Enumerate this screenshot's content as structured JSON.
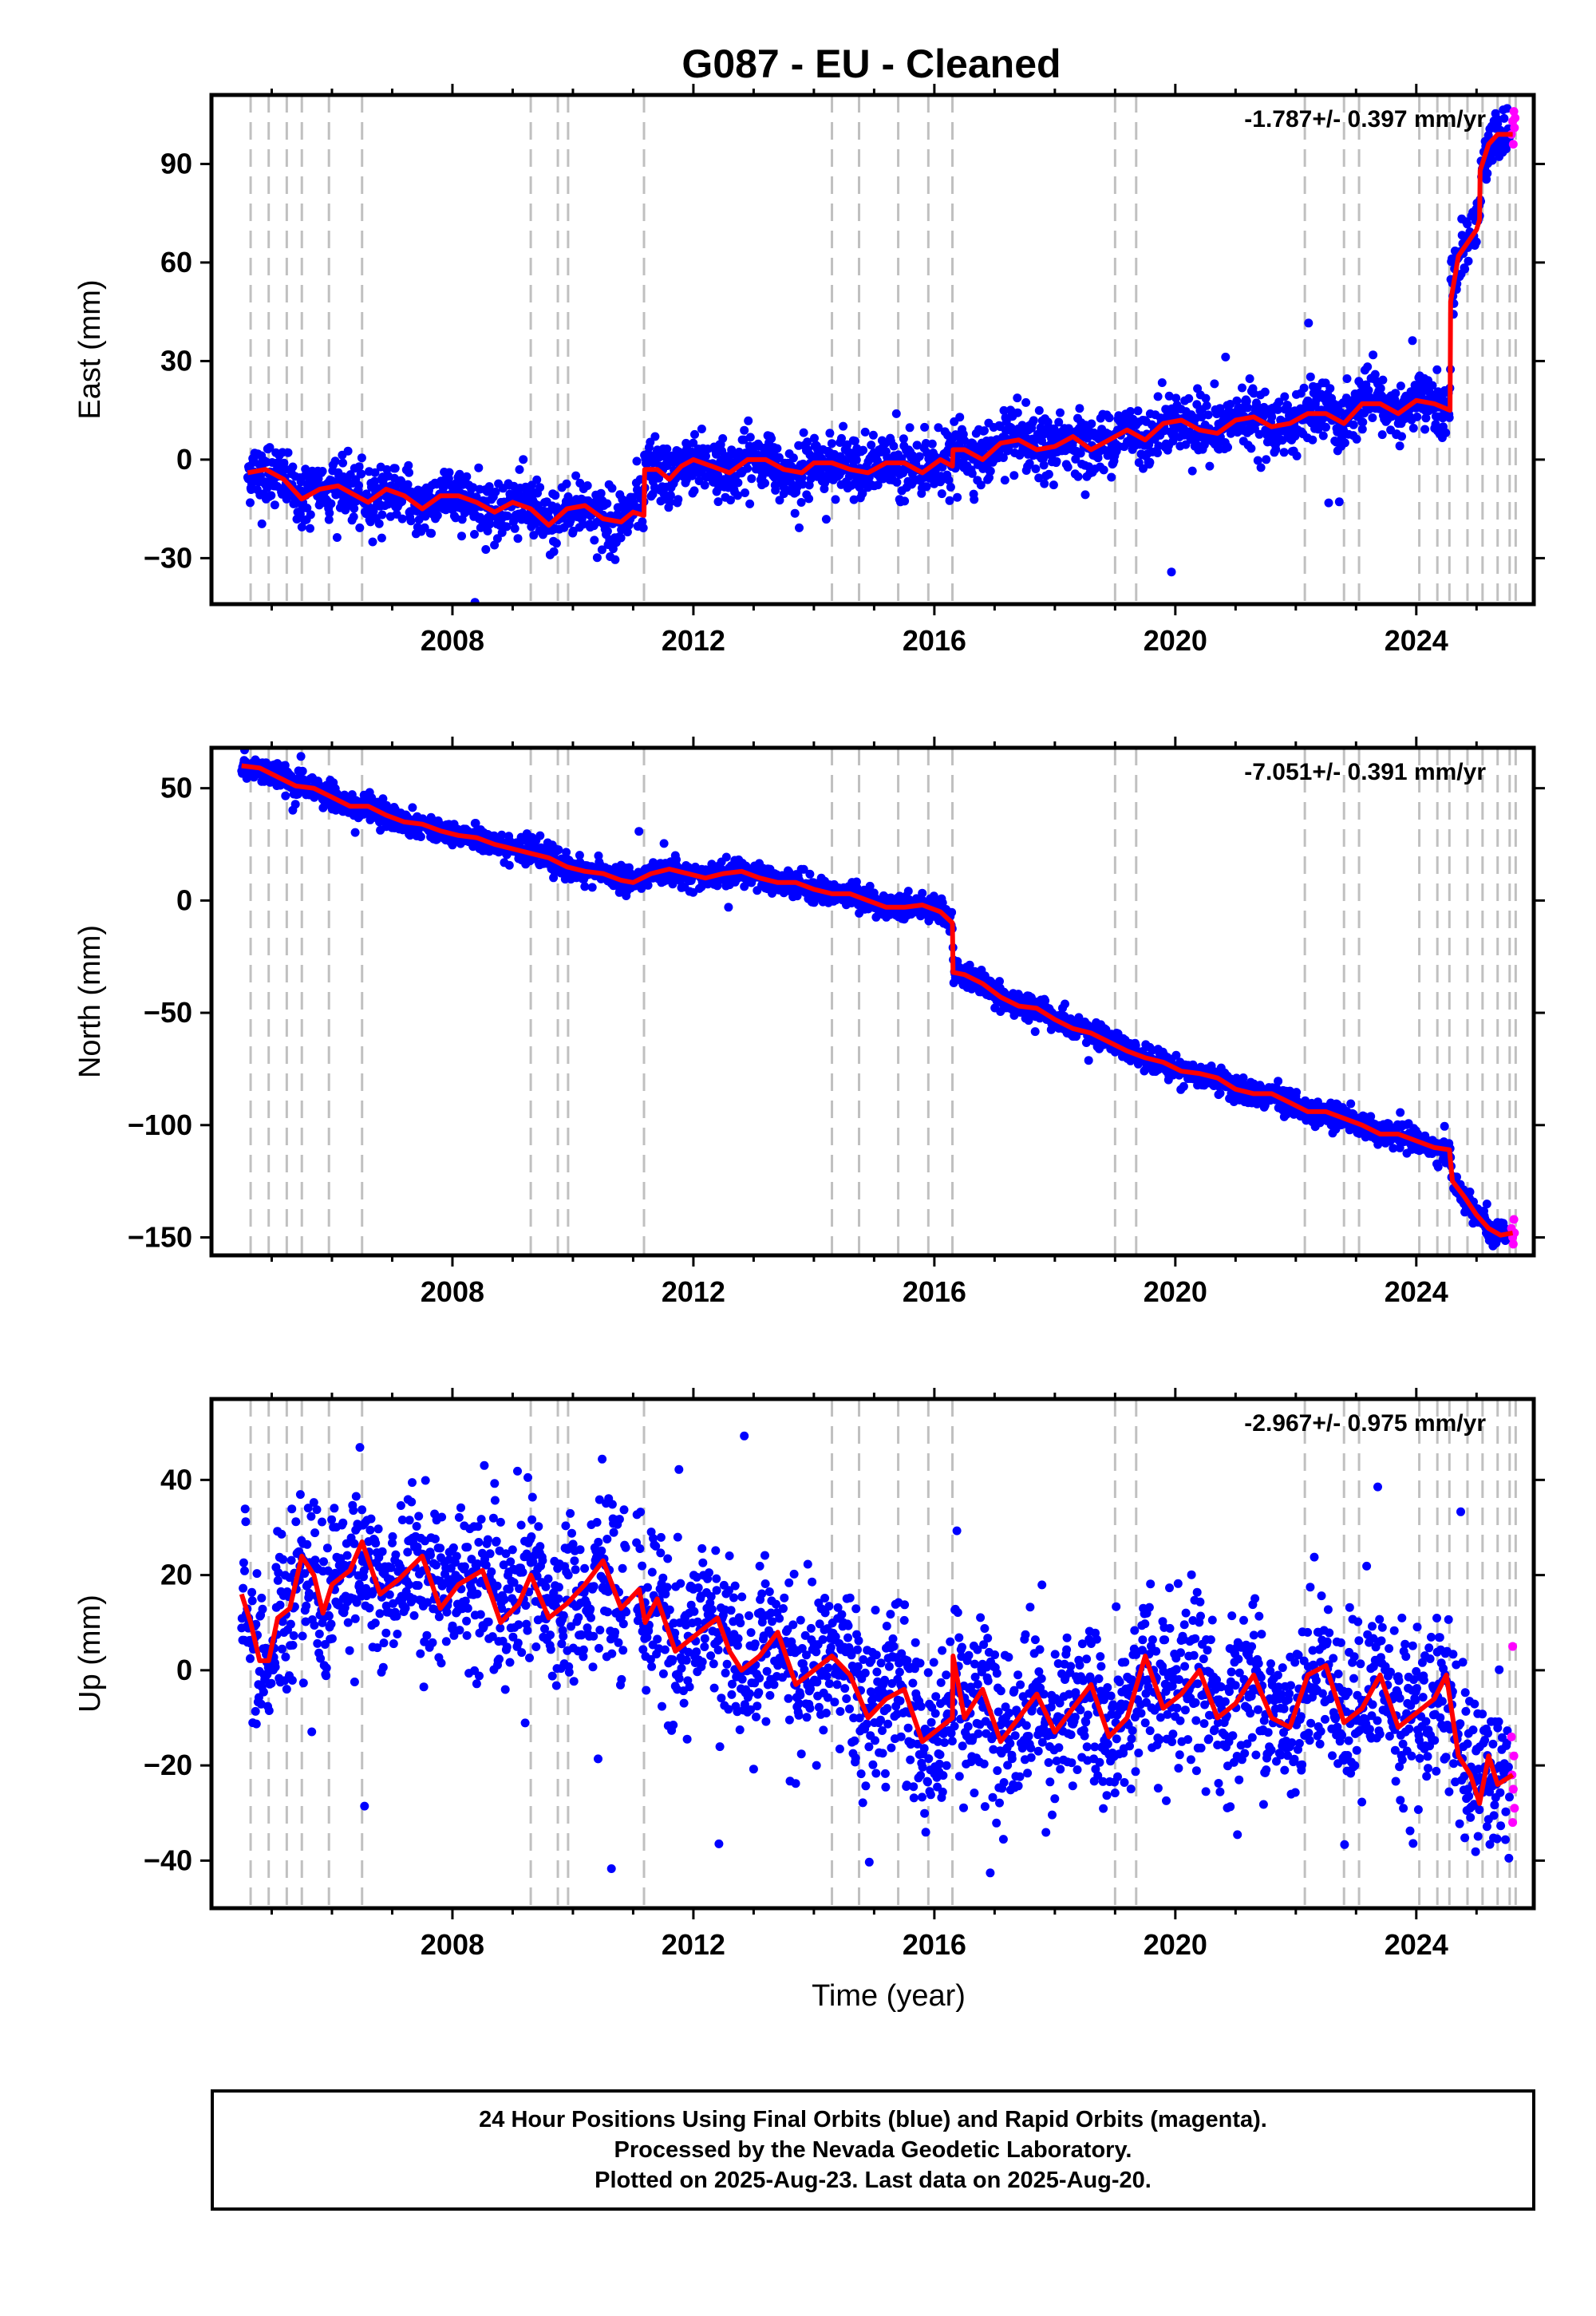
{
  "title": "G087  - EU - Cleaned",
  "chart_data": [
    {
      "type": "scatter",
      "name": "East",
      "ylabel": "East (mm)",
      "xlabel": "",
      "rate_text": "-1.787+/- 0.397 mm/yr",
      "xlim": [
        2004.0,
        2025.95
      ],
      "ylim": [
        -44,
        111
      ],
      "yticks": [
        -30,
        0,
        30,
        60,
        90
      ],
      "xticks": [
        2008,
        2012,
        2016,
        2020,
        2024
      ],
      "model": [
        [
          2004.6,
          -4
        ],
        [
          2004.9,
          -3
        ],
        [
          2005.2,
          -6
        ],
        [
          2005.5,
          -12
        ],
        [
          2005.8,
          -9
        ],
        [
          2006.1,
          -8
        ],
        [
          2006.4,
          -11
        ],
        [
          2006.6,
          -13
        ],
        [
          2006.9,
          -9
        ],
        [
          2007.2,
          -11
        ],
        [
          2007.5,
          -15
        ],
        [
          2007.8,
          -11
        ],
        [
          2008.1,
          -11
        ],
        [
          2008.4,
          -13
        ],
        [
          2008.7,
          -16
        ],
        [
          2009.0,
          -13
        ],
        [
          2009.3,
          -15
        ],
        [
          2009.6,
          -20
        ],
        [
          2009.9,
          -15
        ],
        [
          2010.2,
          -14
        ],
        [
          2010.5,
          -18
        ],
        [
          2010.8,
          -19
        ],
        [
          2011.0,
          -16
        ],
        [
          2011.18,
          -17
        ],
        [
          2011.19,
          -3
        ],
        [
          2011.4,
          -3
        ],
        [
          2011.6,
          -6
        ],
        [
          2011.8,
          -2
        ],
        [
          2012.0,
          0
        ],
        [
          2012.3,
          -2
        ],
        [
          2012.6,
          -4
        ],
        [
          2012.9,
          0
        ],
        [
          2013.2,
          0
        ],
        [
          2013.5,
          -3
        ],
        [
          2013.8,
          -4
        ],
        [
          2014.0,
          -1
        ],
        [
          2014.3,
          -1
        ],
        [
          2014.6,
          -3
        ],
        [
          2014.9,
          -4
        ],
        [
          2015.2,
          -1
        ],
        [
          2015.5,
          -1
        ],
        [
          2015.8,
          -4
        ],
        [
          2016.1,
          0
        ],
        [
          2016.3,
          -2
        ],
        [
          2016.31,
          3
        ],
        [
          2016.5,
          3
        ],
        [
          2016.8,
          0
        ],
        [
          2017.1,
          5
        ],
        [
          2017.4,
          6
        ],
        [
          2017.7,
          3
        ],
        [
          2018.0,
          4
        ],
        [
          2018.3,
          7
        ],
        [
          2018.6,
          3
        ],
        [
          2018.9,
          6
        ],
        [
          2019.2,
          9
        ],
        [
          2019.5,
          6
        ],
        [
          2019.8,
          11
        ],
        [
          2020.1,
          12
        ],
        [
          2020.4,
          9
        ],
        [
          2020.7,
          8
        ],
        [
          2021.0,
          12
        ],
        [
          2021.3,
          13
        ],
        [
          2021.6,
          10
        ],
        [
          2021.9,
          11
        ],
        [
          2022.2,
          14
        ],
        [
          2022.5,
          14
        ],
        [
          2022.8,
          11
        ],
        [
          2023.1,
          17
        ],
        [
          2023.4,
          17
        ],
        [
          2023.7,
          14
        ],
        [
          2024.0,
          18
        ],
        [
          2024.3,
          17
        ],
        [
          2024.56,
          15
        ],
        [
          2024.57,
          48
        ],
        [
          2024.7,
          62
        ],
        [
          2024.85,
          66
        ],
        [
          2025.0,
          70
        ],
        [
          2025.05,
          73
        ],
        [
          2025.06,
          88
        ],
        [
          2025.2,
          96
        ],
        [
          2025.35,
          99
        ],
        [
          2025.6,
          99
        ]
      ],
      "scatter_noise": 4.5,
      "rapid_points": [
        [
          2025.58,
          99
        ],
        [
          2025.6,
          103
        ],
        [
          2025.62,
          106
        ],
        [
          2025.63,
          101
        ],
        [
          2025.61,
          96
        ],
        [
          2025.64,
          104
        ]
      ]
    },
    {
      "type": "scatter",
      "name": "North",
      "ylabel": "North (mm)",
      "xlabel": "",
      "rate_text": "-7.051+/- 0.391 mm/yr",
      "xlim": [
        2004.0,
        2025.95
      ],
      "ylim": [
        -158,
        68
      ],
      "yticks": [
        -150,
        -100,
        -50,
        0,
        50
      ],
      "xticks": [
        2008,
        2012,
        2016,
        2020,
        2024
      ],
      "model": [
        [
          2004.5,
          60
        ],
        [
          2004.8,
          59
        ],
        [
          2005.1,
          55
        ],
        [
          2005.4,
          51
        ],
        [
          2005.7,
          50
        ],
        [
          2006.0,
          46
        ],
        [
          2006.3,
          42
        ],
        [
          2006.6,
          42
        ],
        [
          2006.9,
          38
        ],
        [
          2007.2,
          35
        ],
        [
          2007.5,
          34
        ],
        [
          2007.8,
          31
        ],
        [
          2008.1,
          29
        ],
        [
          2008.4,
          28
        ],
        [
          2008.7,
          25
        ],
        [
          2009.0,
          23
        ],
        [
          2009.3,
          21
        ],
        [
          2009.6,
          19
        ],
        [
          2009.9,
          15
        ],
        [
          2010.2,
          13
        ],
        [
          2010.5,
          12
        ],
        [
          2010.8,
          9
        ],
        [
          2011.0,
          8
        ],
        [
          2011.3,
          12
        ],
        [
          2011.6,
          14
        ],
        [
          2011.9,
          12
        ],
        [
          2012.2,
          10
        ],
        [
          2012.5,
          12
        ],
        [
          2012.8,
          13
        ],
        [
          2013.1,
          10
        ],
        [
          2013.4,
          8
        ],
        [
          2013.7,
          8
        ],
        [
          2014.0,
          5
        ],
        [
          2014.3,
          3
        ],
        [
          2014.6,
          3
        ],
        [
          2014.9,
          0
        ],
        [
          2015.2,
          -3
        ],
        [
          2015.5,
          -3
        ],
        [
          2015.8,
          -2
        ],
        [
          2016.1,
          -5
        ],
        [
          2016.3,
          -10
        ],
        [
          2016.31,
          -32
        ],
        [
          2016.5,
          -33
        ],
        [
          2016.8,
          -37
        ],
        [
          2017.1,
          -43
        ],
        [
          2017.4,
          -47
        ],
        [
          2017.7,
          -48
        ],
        [
          2018.0,
          -53
        ],
        [
          2018.3,
          -57
        ],
        [
          2018.6,
          -59
        ],
        [
          2018.9,
          -63
        ],
        [
          2019.2,
          -67
        ],
        [
          2019.5,
          -70
        ],
        [
          2019.8,
          -72
        ],
        [
          2020.1,
          -76
        ],
        [
          2020.4,
          -77
        ],
        [
          2020.7,
          -79
        ],
        [
          2021.0,
          -84
        ],
        [
          2021.3,
          -86
        ],
        [
          2021.6,
          -86
        ],
        [
          2021.9,
          -90
        ],
        [
          2022.2,
          -94
        ],
        [
          2022.5,
          -94
        ],
        [
          2022.8,
          -97
        ],
        [
          2023.1,
          -100
        ],
        [
          2023.4,
          -104
        ],
        [
          2023.7,
          -104
        ],
        [
          2024.0,
          -107
        ],
        [
          2024.3,
          -110
        ],
        [
          2024.55,
          -111
        ],
        [
          2024.6,
          -125
        ],
        [
          2024.8,
          -132
        ],
        [
          2025.0,
          -140
        ],
        [
          2025.2,
          -146
        ],
        [
          2025.4,
          -149
        ],
        [
          2025.6,
          -148
        ]
      ],
      "scatter_noise": 2.8,
      "rapid_points": [
        [
          2025.58,
          -146
        ],
        [
          2025.6,
          -150
        ],
        [
          2025.62,
          -142
        ],
        [
          2025.63,
          -148
        ],
        [
          2025.61,
          -153
        ]
      ]
    },
    {
      "type": "scatter",
      "name": "Up",
      "ylabel": "Up (mm)",
      "xlabel": "Time (year)",
      "rate_text": "-2.967+/- 0.975 mm/yr",
      "xlim": [
        2004.0,
        2025.95
      ],
      "ylim": [
        -50,
        57
      ],
      "yticks": [
        -40,
        -20,
        0,
        20,
        40
      ],
      "xticks": [
        2008,
        2012,
        2016,
        2020,
        2024
      ],
      "model": [
        [
          2004.5,
          16
        ],
        [
          2004.65,
          10
        ],
        [
          2004.8,
          2
        ],
        [
          2004.95,
          2
        ],
        [
          2005.1,
          11
        ],
        [
          2005.3,
          13
        ],
        [
          2005.5,
          24
        ],
        [
          2005.7,
          20
        ],
        [
          2005.85,
          12
        ],
        [
          2006.0,
          18
        ],
        [
          2006.3,
          21
        ],
        [
          2006.5,
          27
        ],
        [
          2006.8,
          16
        ],
        [
          2007.1,
          19
        ],
        [
          2007.5,
          24
        ],
        [
          2007.8,
          13
        ],
        [
          2008.1,
          18
        ],
        [
          2008.5,
          21
        ],
        [
          2008.8,
          10
        ],
        [
          2009.1,
          14
        ],
        [
          2009.3,
          20
        ],
        [
          2009.6,
          11
        ],
        [
          2009.9,
          14
        ],
        [
          2010.2,
          18
        ],
        [
          2010.5,
          23
        ],
        [
          2010.8,
          13
        ],
        [
          2011.1,
          17
        ],
        [
          2011.2,
          10
        ],
        [
          2011.4,
          15
        ],
        [
          2011.7,
          4
        ],
        [
          2012.0,
          7
        ],
        [
          2012.4,
          11
        ],
        [
          2012.6,
          4
        ],
        [
          2012.8,
          0
        ],
        [
          2013.1,
          3
        ],
        [
          2013.4,
          8
        ],
        [
          2013.7,
          -3
        ],
        [
          2014.0,
          0
        ],
        [
          2014.3,
          3
        ],
        [
          2014.6,
          -1
        ],
        [
          2014.9,
          -10
        ],
        [
          2015.2,
          -6
        ],
        [
          2015.5,
          -4
        ],
        [
          2015.8,
          -15
        ],
        [
          2016.1,
          -12
        ],
        [
          2016.3,
          -10
        ],
        [
          2016.31,
          3
        ],
        [
          2016.5,
          -10
        ],
        [
          2016.8,
          -4
        ],
        [
          2017.1,
          -15
        ],
        [
          2017.4,
          -10
        ],
        [
          2017.7,
          -5
        ],
        [
          2018.0,
          -13
        ],
        [
          2018.3,
          -8
        ],
        [
          2018.6,
          -3
        ],
        [
          2018.9,
          -14
        ],
        [
          2019.2,
          -10
        ],
        [
          2019.5,
          3
        ],
        [
          2019.8,
          -8
        ],
        [
          2020.1,
          -5
        ],
        [
          2020.4,
          0
        ],
        [
          2020.7,
          -10
        ],
        [
          2021.0,
          -7
        ],
        [
          2021.3,
          -1
        ],
        [
          2021.6,
          -10
        ],
        [
          2021.9,
          -12
        ],
        [
          2022.2,
          -1
        ],
        [
          2022.5,
          1
        ],
        [
          2022.8,
          -11
        ],
        [
          2023.1,
          -8
        ],
        [
          2023.4,
          -1
        ],
        [
          2023.7,
          -12
        ],
        [
          2024.0,
          -9
        ],
        [
          2024.3,
          -6
        ],
        [
          2024.5,
          -1
        ],
        [
          2024.7,
          -18
        ],
        [
          2024.9,
          -22
        ],
        [
          2025.05,
          -28
        ],
        [
          2025.2,
          -18
        ],
        [
          2025.35,
          -24
        ],
        [
          2025.6,
          -22
        ]
      ],
      "scatter_noise": 8.5,
      "rapid_points": [
        [
          2025.6,
          5
        ],
        [
          2025.58,
          -14
        ],
        [
          2025.62,
          -18
        ],
        [
          2025.61,
          -25
        ],
        [
          2025.63,
          -29
        ],
        [
          2025.6,
          -32
        ],
        [
          2025.59,
          -22
        ]
      ]
    }
  ],
  "equipment_changes": [
    2004.65,
    2004.95,
    2005.25,
    2005.5,
    2005.95,
    2006.5,
    2009.3,
    2009.75,
    2009.92,
    2011.18,
    2014.3,
    2014.75,
    2015.4,
    2015.9,
    2016.3,
    2019.0,
    2019.35,
    2022.15,
    2022.8,
    2023.05,
    2024.05,
    2024.35,
    2024.55,
    2024.85,
    2025.1,
    2025.35,
    2025.55,
    2025.65
  ],
  "colors": {
    "final_orbits": "#0000ff",
    "rapid_orbits": "#ff00ff",
    "model": "#ff0000",
    "equipment_lines": "#c0c0c0"
  },
  "footer": {
    "line1": "24 Hour Positions Using Final Orbits (blue) and Rapid Orbits (magenta).",
    "line2": "Processed by the Nevada Geodetic Laboratory.",
    "line3": "Plotted on 2025-Aug-23. Last data on 2025-Aug-20."
  }
}
